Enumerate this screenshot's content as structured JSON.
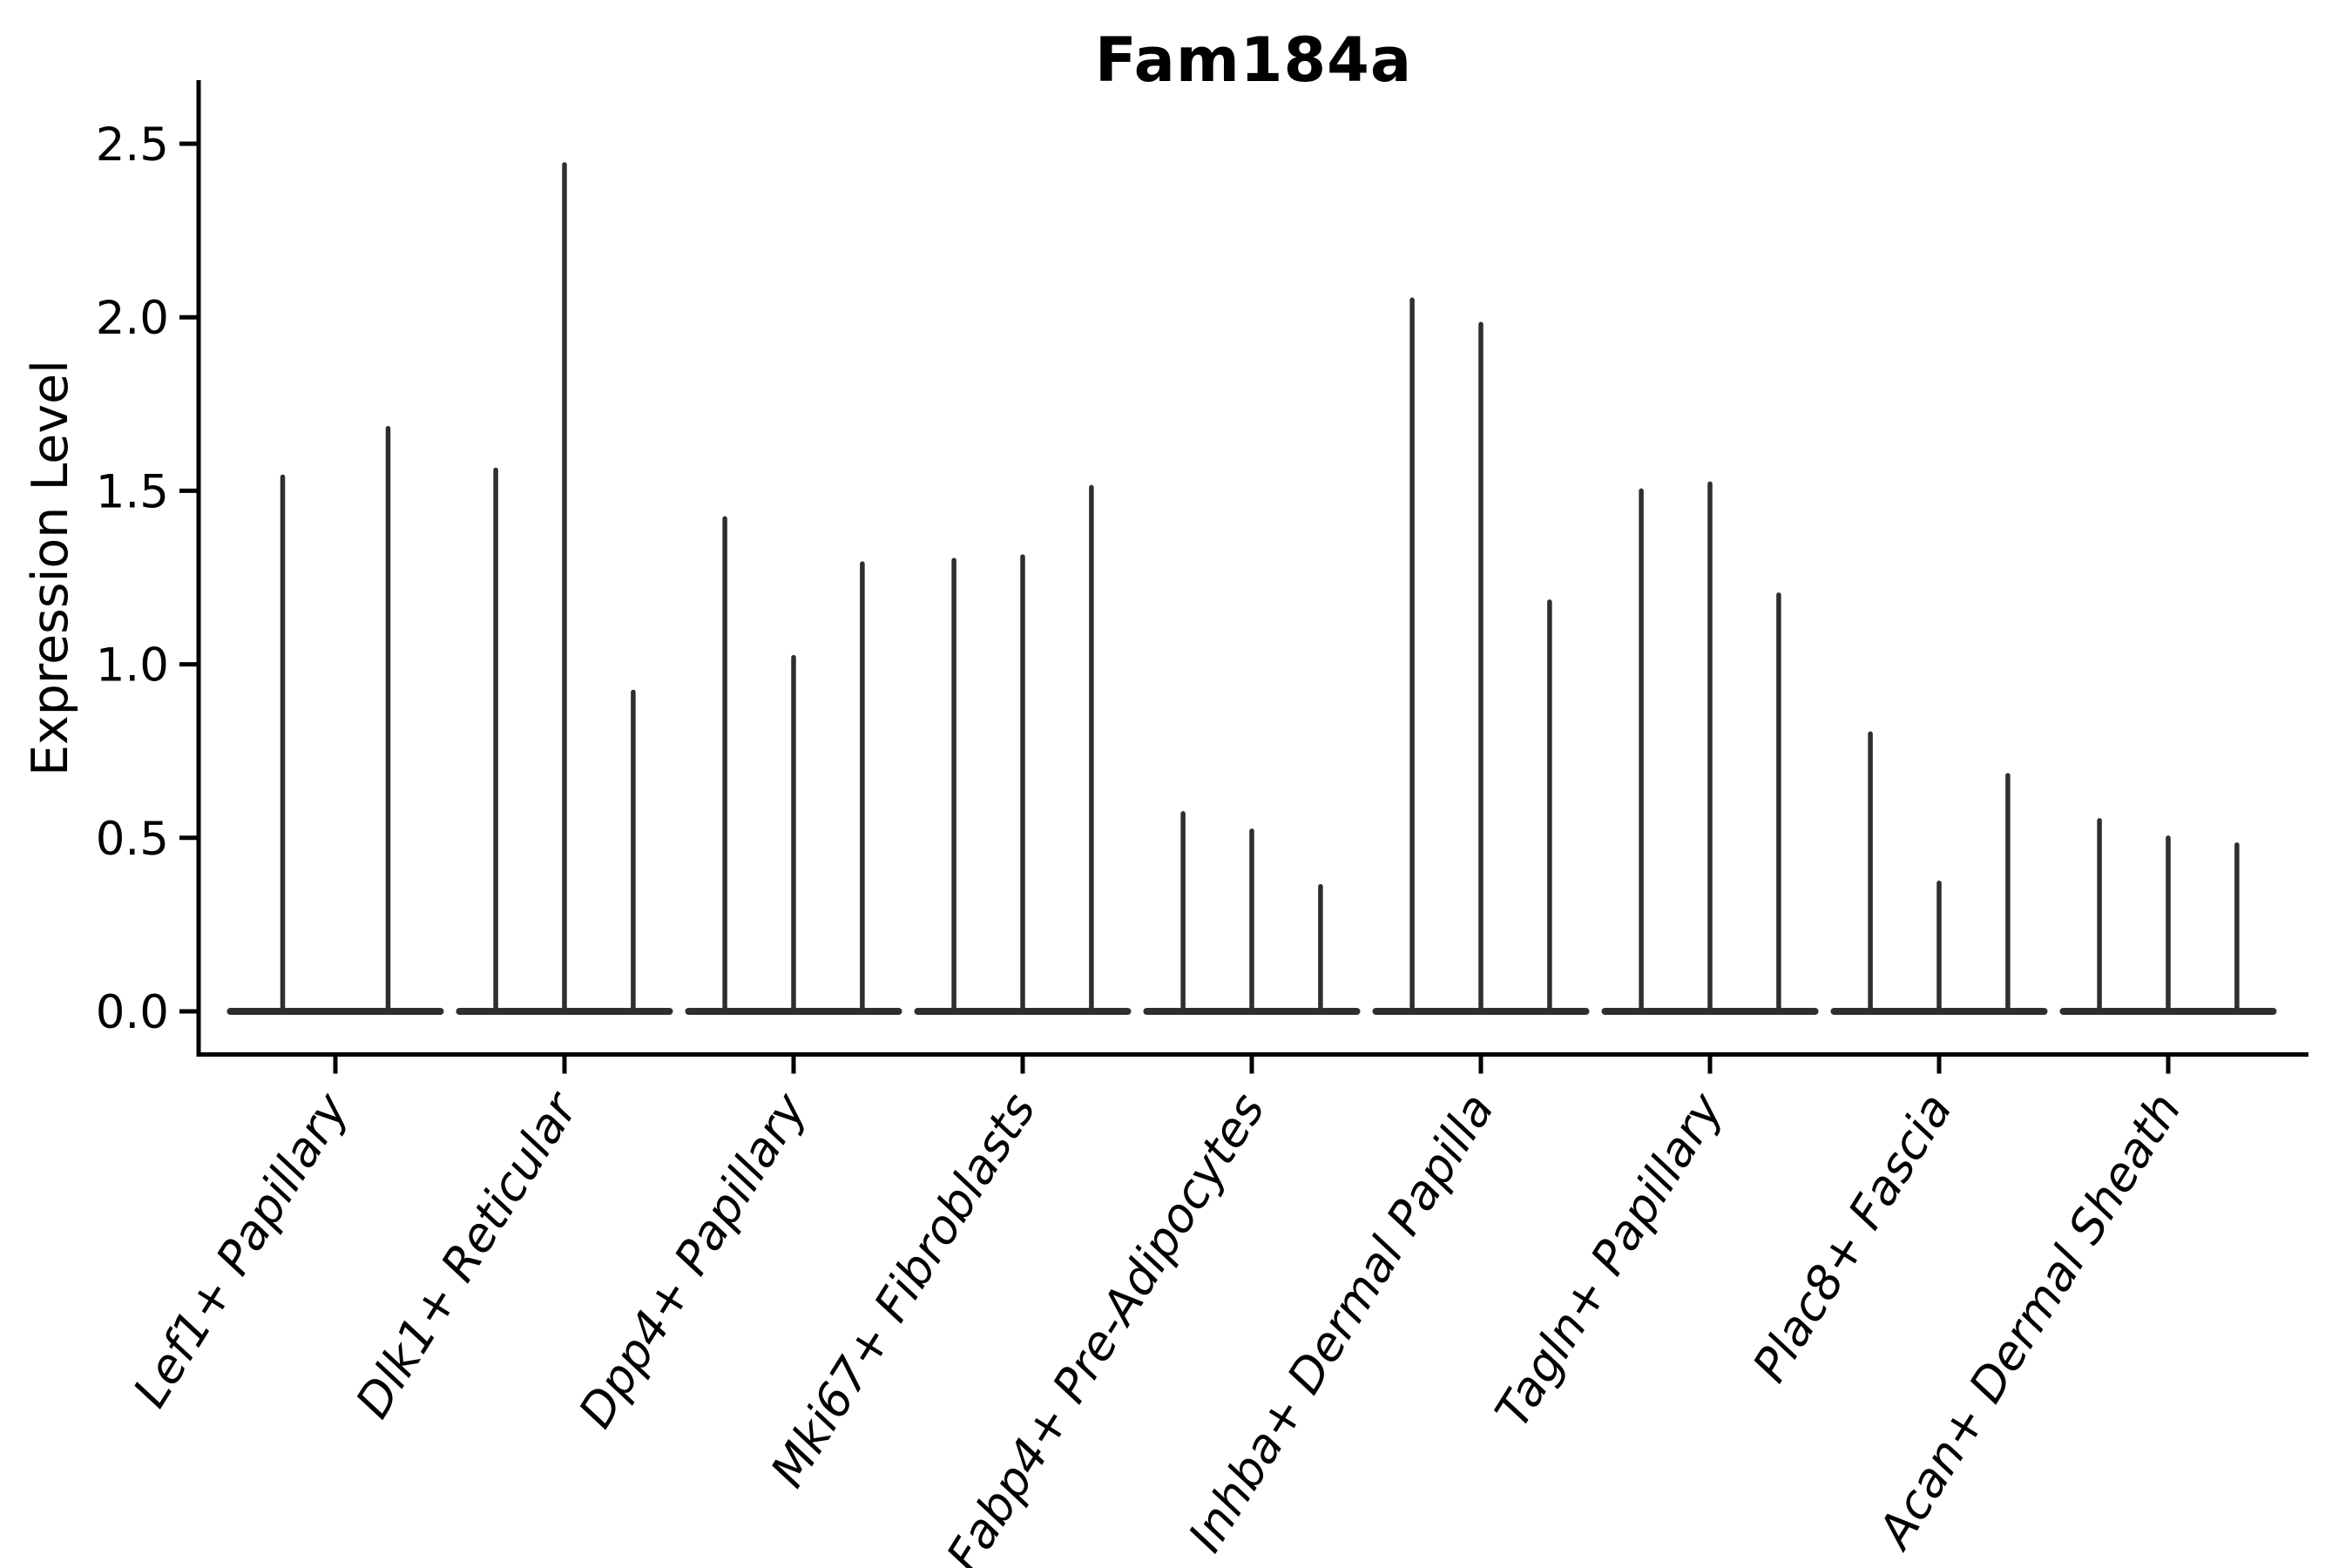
{
  "figure": {
    "background_color": "#ffffff"
  },
  "chart_data": {
    "type": "violin",
    "title": "Fam184a",
    "xlabel": "",
    "ylabel": "Expression Level",
    "ylim": [
      -0.12,
      2.68
    ],
    "yticks": [
      0.0,
      0.5,
      1.0,
      1.5,
      2.0,
      2.5
    ],
    "ytick_labels": [
      "0.0",
      "0.5",
      "1.0",
      "1.5",
      "2.0",
      "2.5"
    ],
    "grid": false,
    "legend": "none",
    "style": {
      "violin_color": "#2d2f2f",
      "axis_color": "#000000",
      "violin_shape": "zero-inflated narrow spike with baseline bulge at 0",
      "xtick_label_rotation_deg": 58,
      "xtick_label_style": "italic"
    },
    "categories": [
      "Lef1+ Papillary",
      "Dlk1+ Reticular",
      "Dpp4+ Papillary",
      "Mki67+ Fibroblasts",
      "Fabp4+ Pre-Adipocytes",
      "Inhba+ Dermal Papilla",
      "Tagln+ Papillary",
      "Plac8+ Fascia",
      "Acan+ Dermal Sheath"
    ],
    "violins": [
      {
        "category": "Lef1+ Papillary",
        "peak_expression": [
          1.54,
          1.68
        ]
      },
      {
        "category": "Dlk1+ Reticular",
        "peak_expression": [
          1.56,
          2.44,
          0.92
        ]
      },
      {
        "category": "Dpp4+ Papillary",
        "peak_expression": [
          1.42,
          1.02,
          1.29
        ]
      },
      {
        "category": "Mki67+ Fibroblasts",
        "peak_expression": [
          1.3,
          1.31,
          1.51
        ]
      },
      {
        "category": "Fabp4+ Pre-Adipocytes",
        "peak_expression": [
          0.57,
          0.52,
          0.36
        ]
      },
      {
        "category": "Inhba+ Dermal Papilla",
        "peak_expression": [
          2.05,
          1.98,
          1.18
        ]
      },
      {
        "category": "Tagln+ Papillary",
        "peak_expression": [
          1.5,
          1.52,
          1.2
        ]
      },
      {
        "category": "Plac8+ Fascia",
        "peak_expression": [
          0.8,
          0.37,
          0.68
        ]
      },
      {
        "category": "Acan+ Dermal Sheath",
        "peak_expression": [
          0.55,
          0.5,
          0.48
        ]
      }
    ],
    "baseline_value": 0.0
  }
}
